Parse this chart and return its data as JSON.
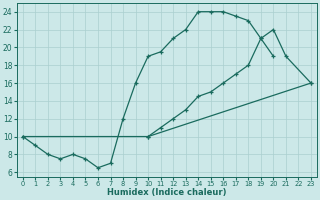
{
  "line1_x": [
    0,
    1,
    2,
    3,
    4,
    5,
    6,
    7,
    8,
    9,
    10,
    11,
    12,
    13,
    14,
    15,
    16,
    17,
    18,
    19,
    20
  ],
  "line1_y": [
    10,
    9,
    8,
    7.5,
    8,
    7.5,
    6.5,
    7,
    12,
    16,
    19,
    19.5,
    21,
    22,
    24,
    24,
    24,
    23.5,
    23,
    21,
    19
  ],
  "line2_x": [
    0,
    10,
    23
  ],
  "line2_y": [
    10,
    10,
    16
  ],
  "line3_x": [
    10,
    11,
    12,
    13,
    14,
    15,
    16,
    17,
    18,
    19,
    20,
    21,
    23
  ],
  "line3_y": [
    10,
    11,
    12,
    13,
    14.5,
    15,
    16,
    17,
    18,
    21,
    22,
    19,
    16
  ],
  "color": "#1a6b5e",
  "bg_color": "#cce8e8",
  "grid_color": "#aacfcf",
  "xlabel": "Humidex (Indice chaleur)",
  "xlim": [
    -0.5,
    23.5
  ],
  "ylim": [
    5.5,
    25.0
  ],
  "yticks": [
    6,
    8,
    10,
    12,
    14,
    16,
    18,
    20,
    22,
    24
  ],
  "xticks": [
    0,
    1,
    2,
    3,
    4,
    5,
    6,
    7,
    8,
    9,
    10,
    11,
    12,
    13,
    14,
    15,
    16,
    17,
    18,
    19,
    20,
    21,
    22,
    23
  ]
}
